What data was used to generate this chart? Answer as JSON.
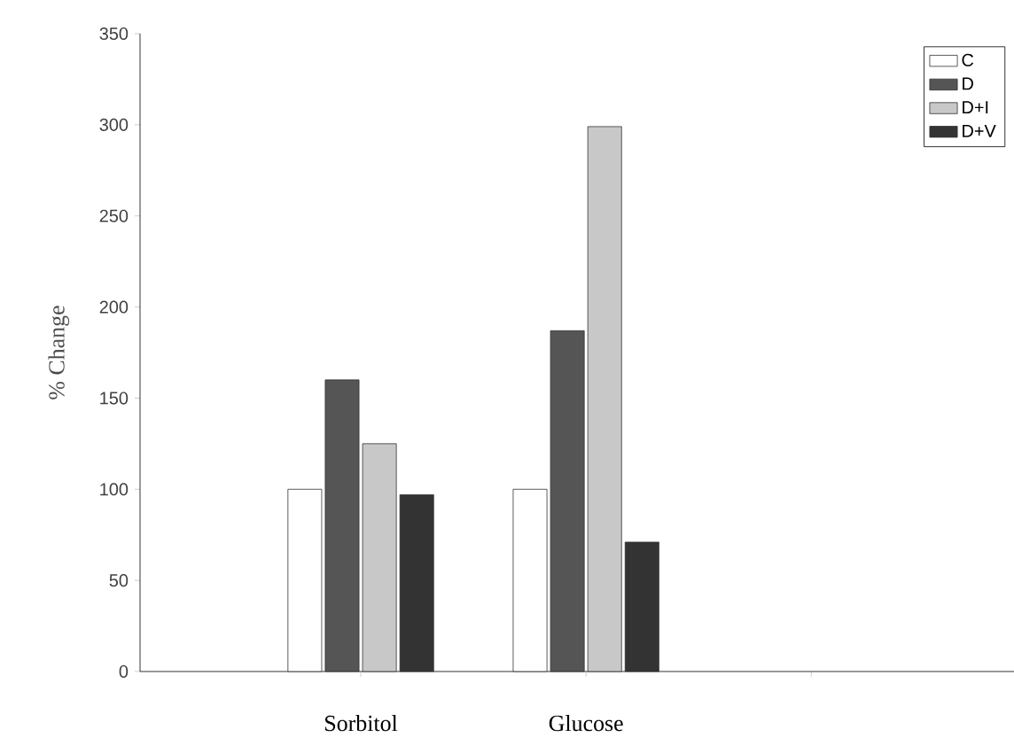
{
  "chart_data": {
    "type": "bar",
    "ylabel": "% Change",
    "categories": [
      "Sorbitol",
      "Glucose",
      null
    ],
    "series": [
      {
        "name": "C",
        "color": "#ffffff",
        "values": [
          100,
          100,
          null
        ]
      },
      {
        "name": "D",
        "color": "#555555",
        "values": [
          160,
          187,
          null
        ]
      },
      {
        "name": "D+I",
        "color": "#c8c8c8",
        "values": [
          125,
          299,
          null
        ]
      },
      {
        "name": "D+V",
        "color": "#333333",
        "values": [
          97,
          71,
          null
        ]
      }
    ],
    "ylim": [
      0,
      350
    ],
    "yticks": [
      0,
      50,
      100,
      150,
      200,
      250,
      300,
      350
    ],
    "legend": "top right",
    "grid": false
  }
}
